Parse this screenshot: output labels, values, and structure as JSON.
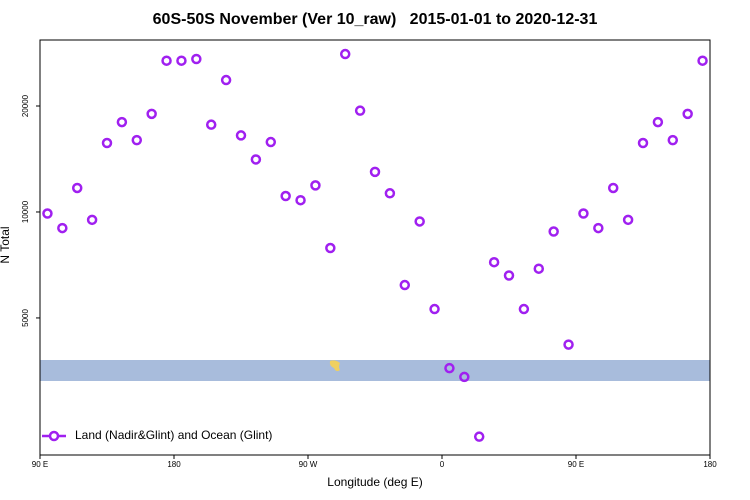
{
  "chart_data": {
    "type": "scatter",
    "title": "60S-50S November (Ver 10_raw)   2015-01-01 to 2020-12-31",
    "x_label": "Longitude (deg E)",
    "y_label": "N Total",
    "xlim": [
      90,
      540
    ],
    "xticks": [
      {
        "value": 90,
        "label": "90 E"
      },
      {
        "value": 180,
        "label": "180"
      },
      {
        "value": 270,
        "label": "90 W"
      },
      {
        "value": 360,
        "label": "0"
      },
      {
        "value": 450,
        "label": "90 E"
      },
      {
        "value": 540,
        "label": "180"
      }
    ],
    "ylim": [
      2040,
      30800
    ],
    "yticks": [
      5000,
      10000,
      20000
    ],
    "y_log": true,
    "legend": "bottom-left",
    "series": [
      {
        "name": "Land (Nadir&Glint) and Ocean (Glint)",
        "color": "#a020f0",
        "x": [
          95,
          105,
          115,
          125,
          135,
          145,
          155,
          165,
          175,
          185,
          195,
          205,
          215,
          225,
          235,
          245,
          255,
          265,
          275,
          285,
          295,
          305,
          315,
          325,
          335,
          345,
          355,
          365,
          375,
          385,
          395,
          405,
          415,
          425,
          435,
          445,
          455,
          465,
          475,
          485,
          495,
          505,
          515,
          525,
          535
        ],
        "values": [
          9900,
          9000,
          11700,
          9500,
          15700,
          18000,
          16000,
          19000,
          26900,
          26900,
          27200,
          17700,
          23700,
          16500,
          14100,
          15800,
          11100,
          10800,
          11900,
          7900,
          28100,
          19400,
          13000,
          11300,
          6200,
          9400,
          5300,
          3600,
          3400,
          2300,
          7200,
          6600,
          5300,
          6900,
          8800,
          4200,
          9900,
          9000,
          11700,
          9500,
          15700,
          18000,
          16000,
          19000,
          26900
        ]
      }
    ]
  }
}
